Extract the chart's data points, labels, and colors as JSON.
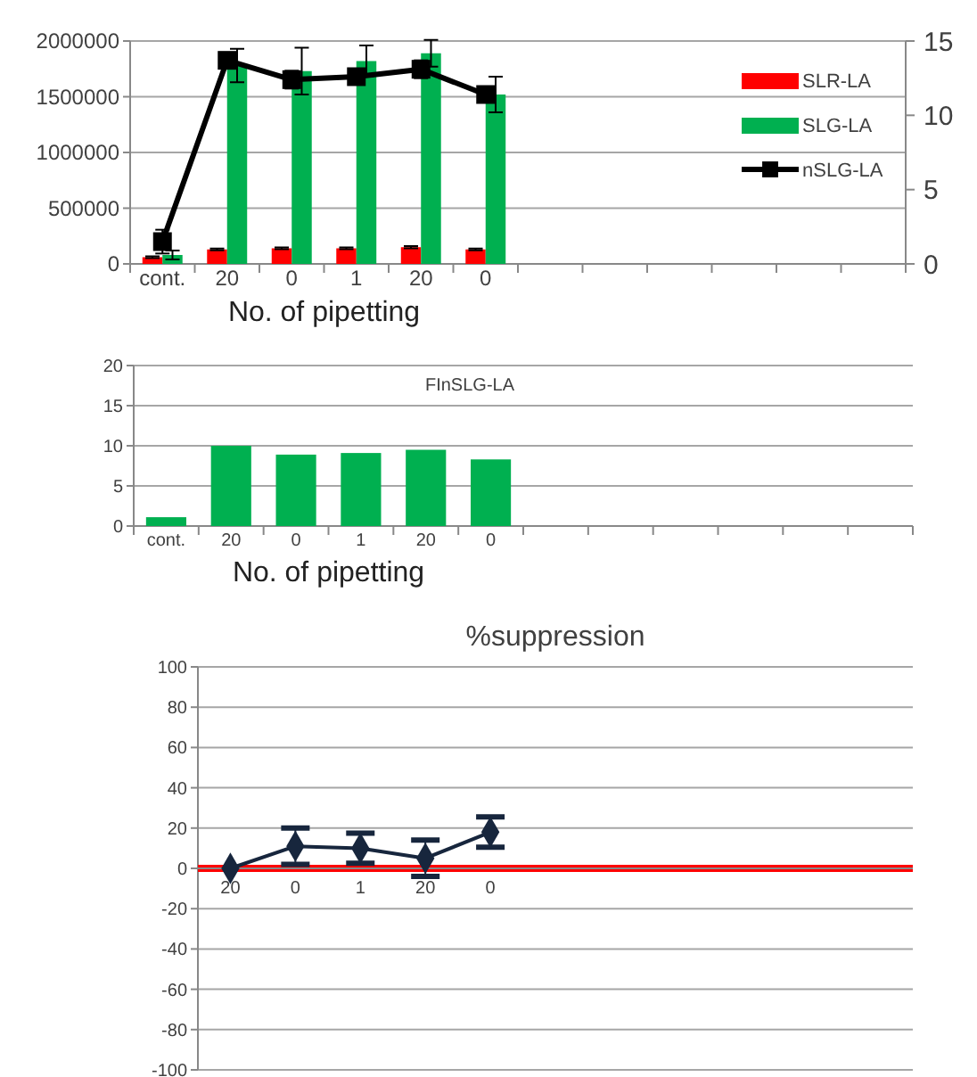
{
  "chart_data": [
    {
      "type": "bar",
      "categories": [
        "cont.",
        "20",
        "0",
        "1",
        "20",
        "0",
        null,
        null,
        null,
        null,
        null,
        null
      ],
      "xlabel": "No. of pipetting",
      "series": [
        {
          "name": "SLR-LA",
          "color": "#ff0000",
          "values": [
            60000,
            130000,
            140000,
            140000,
            150000,
            130000,
            null,
            null,
            null,
            null,
            null,
            null
          ],
          "errors": [
            8000,
            8000,
            8000,
            8000,
            10000,
            8000,
            null,
            null,
            null,
            null,
            null,
            null
          ]
        },
        {
          "name": "SLG-LA",
          "color": "#00b050",
          "values": [
            80000,
            1780000,
            1730000,
            1820000,
            1890000,
            1520000,
            null,
            null,
            null,
            null,
            null,
            null
          ],
          "errors": [
            40000,
            150000,
            210000,
            140000,
            120000,
            160000,
            null,
            null,
            null,
            null,
            null,
            null
          ]
        },
        {
          "name": "nSLG-LA",
          "type": "line",
          "axis": "y2",
          "color": "#000000",
          "marker": "square",
          "values": [
            1.5,
            13.7,
            12.4,
            12.6,
            13.1,
            11.4,
            null,
            null,
            null,
            null,
            null,
            null
          ],
          "errors": [
            0.8,
            0.4,
            0.6,
            0.4,
            0.6,
            0.5,
            null,
            null,
            null,
            null,
            null,
            null
          ]
        }
      ],
      "ylim": [
        0,
        2000000
      ],
      "yticks": [
        0,
        500000,
        1000000,
        1500000,
        2000000
      ],
      "y2lim": [
        0,
        15
      ],
      "y2ticks": [
        0,
        5,
        10,
        15
      ],
      "grid": "y",
      "legend": "right"
    },
    {
      "type": "bar",
      "title": "FInSLG-LA",
      "categories": [
        "cont.",
        "20",
        "0",
        "1",
        "20",
        "0",
        null,
        null,
        null,
        null,
        null,
        null
      ],
      "xlabel": "No. of pipetting",
      "series": [
        {
          "color": "#00b050",
          "values": [
            1.1,
            10,
            8.9,
            9.1,
            9.5,
            8.3,
            null,
            null,
            null,
            null,
            null,
            null
          ]
        }
      ],
      "ylim": [
        0,
        20
      ],
      "yticks": [
        0,
        5,
        10,
        15,
        20
      ],
      "grid": "y"
    },
    {
      "type": "line",
      "title": "%suppression",
      "categories": [
        "20",
        "0",
        "1",
        "20",
        "0",
        null,
        null,
        null,
        null,
        null,
        null
      ],
      "series": [
        {
          "color": "#17263d",
          "marker": "diamond",
          "values": [
            0,
            11,
            10,
            5,
            18,
            null,
            null,
            null,
            null,
            null,
            null
          ],
          "errors": [
            null,
            9,
            7.5,
            9,
            7.5,
            null,
            null,
            null,
            null,
            null,
            null
          ]
        }
      ],
      "ylim": [
        -100,
        100
      ],
      "yticks": [
        -100,
        -80,
        -60,
        -40,
        -20,
        0,
        20,
        40,
        60,
        80,
        100
      ],
      "grid": "y",
      "ref_lines": [
        {
          "axis": "y",
          "value": 0,
          "color": "#ff0000"
        }
      ]
    }
  ]
}
